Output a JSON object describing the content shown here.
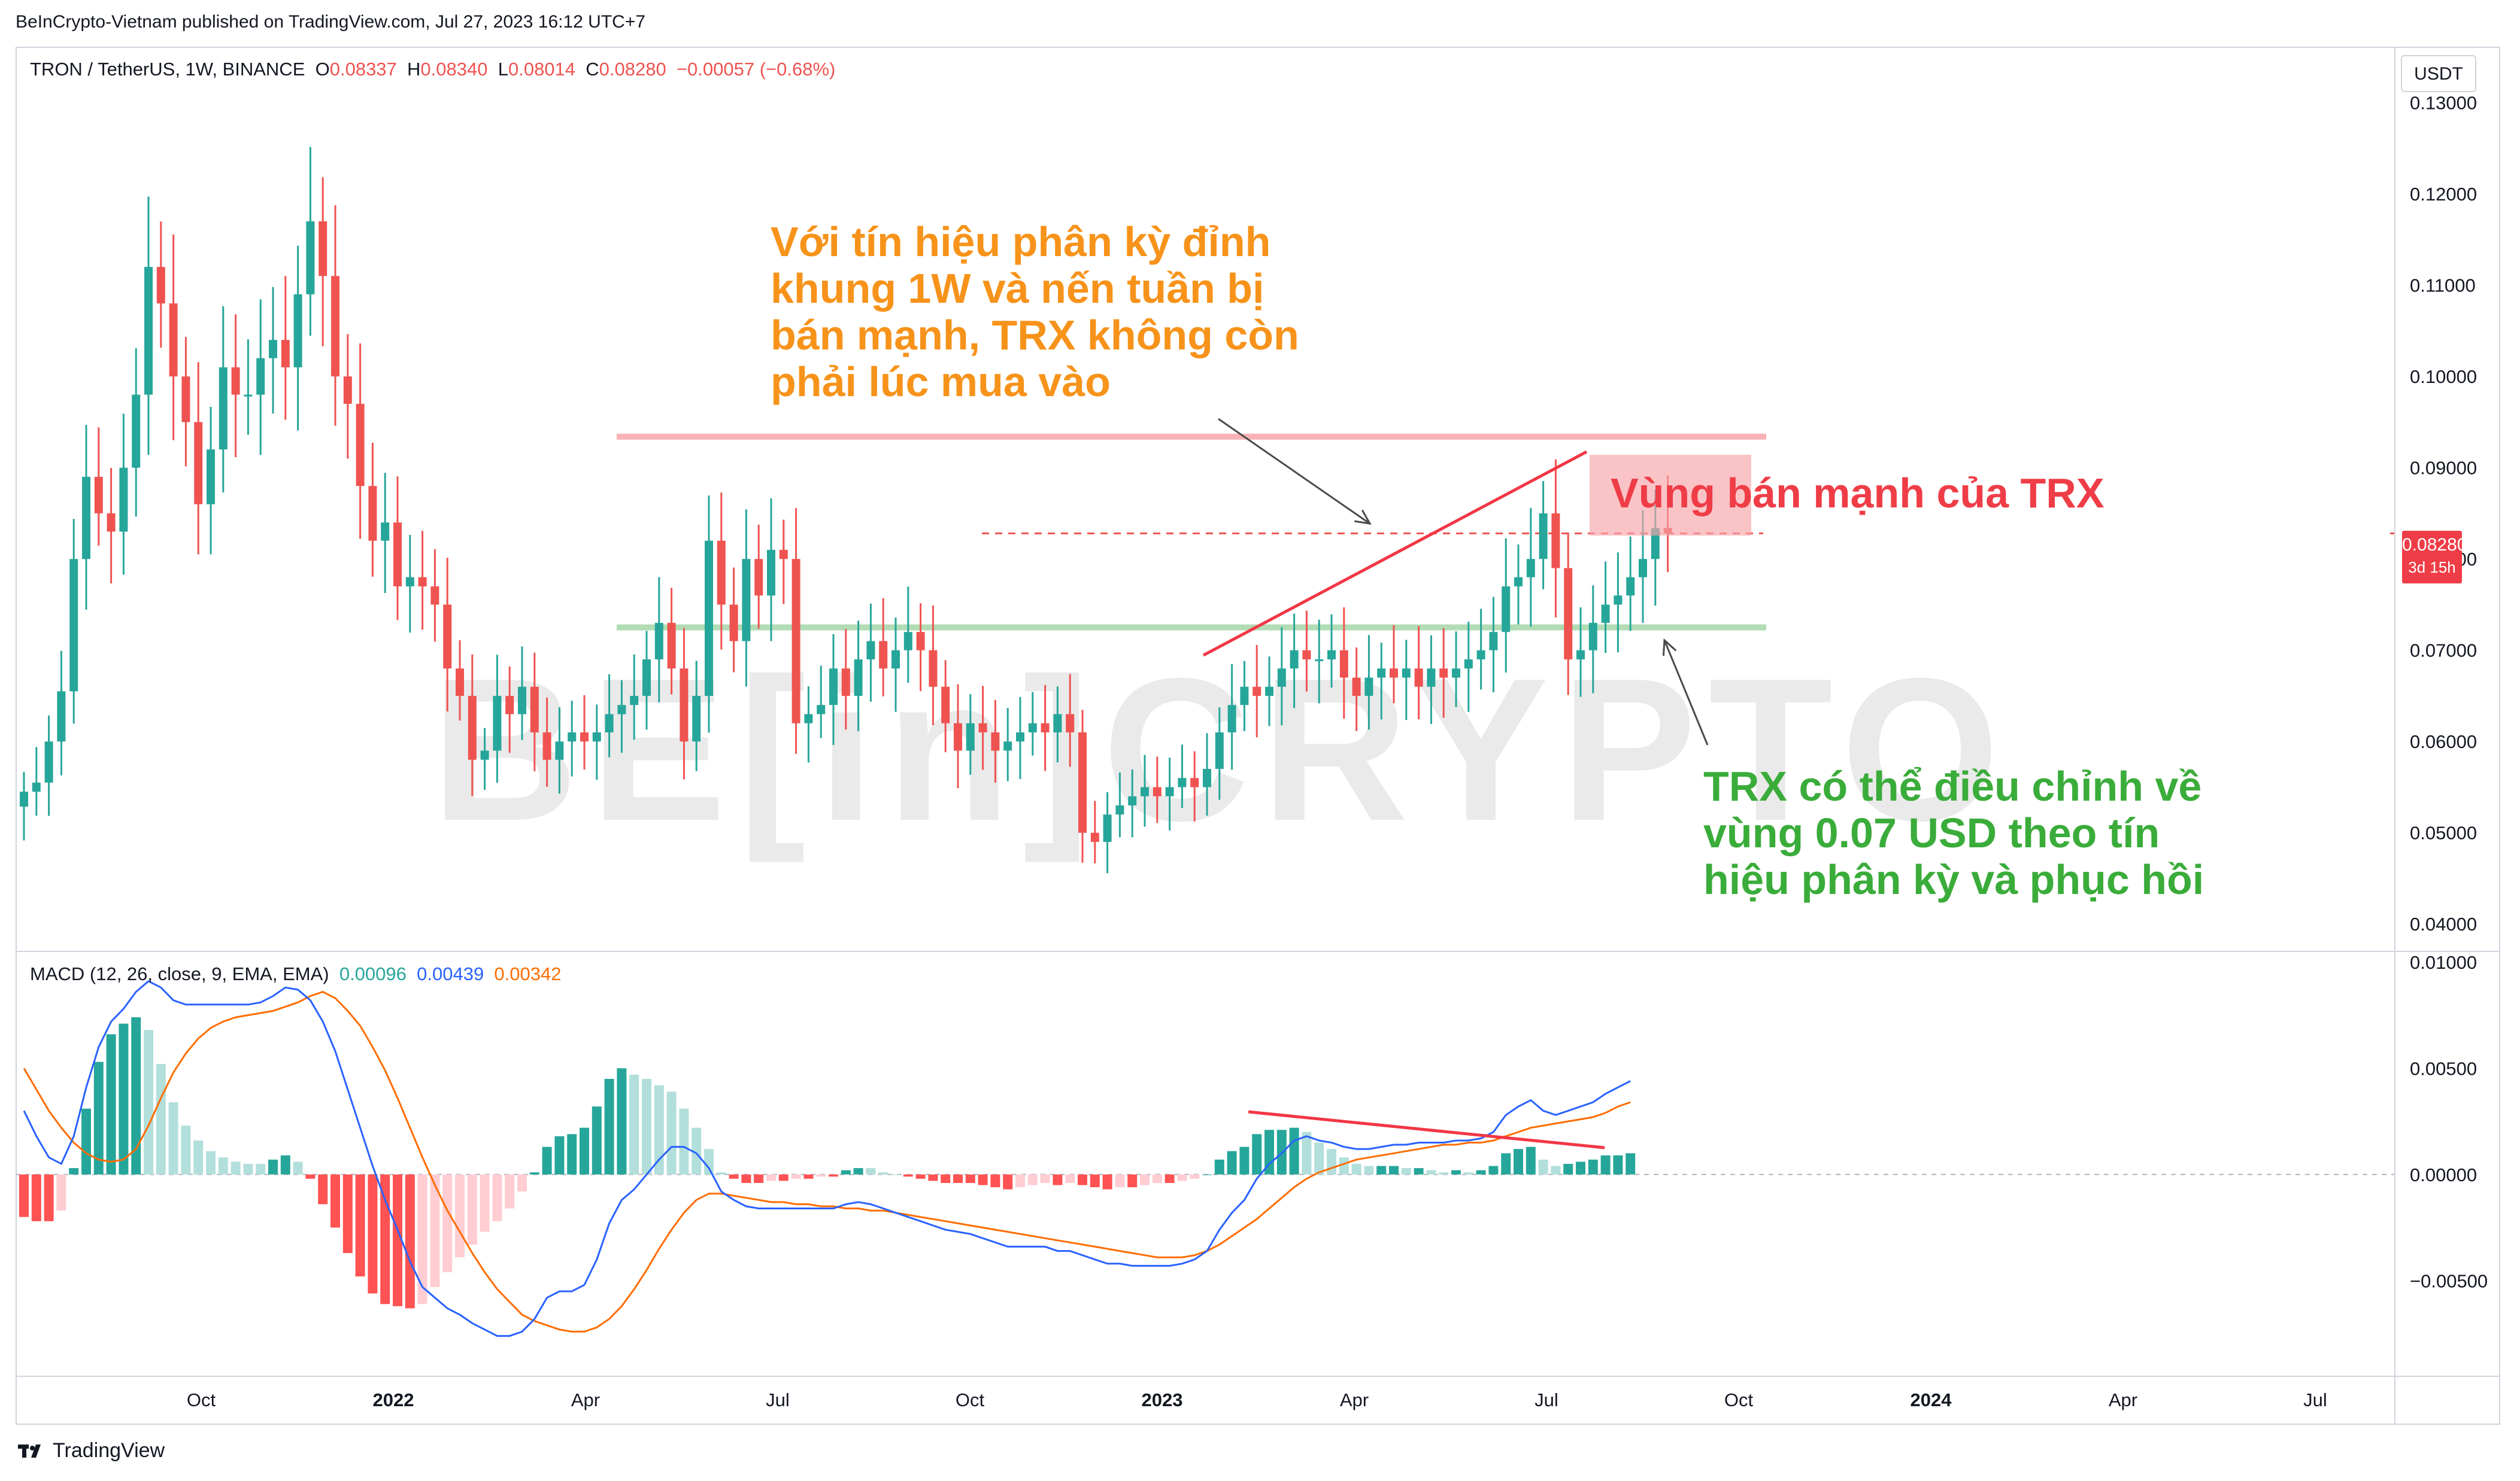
{
  "header": {
    "publisher": "BeInCrypto-Vietnam published on TradingView.com, Jul 27, 2023 16:12 UTC+7"
  },
  "legend": {
    "symbol": "TRON / TetherUS, 1W, BINANCE",
    "o_label": "O",
    "o": "0.08337",
    "h_label": "H",
    "h": "0.08340",
    "l_label": "L",
    "l": "0.08014",
    "c_label": "C",
    "c": "0.08280",
    "change": "−0.00057 (−0.68%)"
  },
  "macd_legend": {
    "label": "MACD (12, 26, close, 9, EMA, EMA)",
    "hist": "0.00096",
    "macd": "0.00439",
    "signal": "0.00342"
  },
  "currency": "USDT",
  "price_badge": {
    "price": "0.08280",
    "countdown": "3d 15h"
  },
  "annotations": {
    "orange": [
      "Với tín hiệu phân kỳ đỉnh",
      "khung 1W và nến tuần bị",
      "bán mạnh, TRX không còn",
      "phải lúc mua vào"
    ],
    "red": "Vùng bán mạnh của TRX",
    "green": [
      "TRX có thể điều chỉnh về",
      "vùng 0.07 USD theo tín",
      "hiệu phân kỳ và phục hồi"
    ]
  },
  "watermark": "BE[in]CRYPTO",
  "brand": "TradingView",
  "colors": {
    "up": "#26a69a",
    "down": "#ef5350",
    "macd_line": "#2962ff",
    "signal_line": "#ff6d00",
    "hist_up_strong": "#26a69a",
    "hist_up_weak": "#b2dfdb",
    "hist_down_strong": "#ff5252",
    "hist_down_weak": "#ffcdd2",
    "resistance": "#f8a5a9",
    "support": "#a5d6a7",
    "trend": "#f23645"
  },
  "chart_data": [
    {
      "type": "candlestick",
      "title": "TRON / TetherUS, 1W, BINANCE",
      "ylim": [
        0.037,
        0.136
      ],
      "yticks": [
        "0.13000",
        "0.12000",
        "0.11000",
        "0.10000",
        "0.09000",
        "0.08000",
        "0.07000",
        "0.06000",
        "0.05000",
        "0.04000"
      ],
      "xticks": [
        "Oct",
        "2022",
        "Apr",
        "Jul",
        "Oct",
        "2023",
        "Apr",
        "Jul",
        "Oct",
        "2024",
        "Apr",
        "Jul"
      ],
      "last_price": 0.0828,
      "levels": {
        "resistance": 0.0934,
        "support": 0.0725,
        "current": 0.0828
      },
      "closes": [
        0.0545,
        0.0555,
        0.06,
        0.0655,
        0.08,
        0.089,
        0.085,
        0.083,
        0.09,
        0.098,
        0.112,
        0.108,
        0.1,
        0.095,
        0.086,
        0.092,
        0.101,
        0.098,
        0.098,
        0.102,
        0.104,
        0.101,
        0.109,
        0.117,
        0.111,
        0.1,
        0.097,
        0.088,
        0.082,
        0.084,
        0.077,
        0.078,
        0.077,
        0.075,
        0.068,
        0.065,
        0.058,
        0.059,
        0.065,
        0.063,
        0.066,
        0.061,
        0.058,
        0.06,
        0.061,
        0.06,
        0.061,
        0.063,
        0.064,
        0.065,
        0.069,
        0.073,
        0.068,
        0.06,
        0.065,
        0.082,
        0.075,
        0.071,
        0.08,
        0.076,
        0.081,
        0.08,
        0.062,
        0.063,
        0.064,
        0.068,
        0.065,
        0.069,
        0.071,
        0.068,
        0.07,
        0.072,
        0.07,
        0.066,
        0.062,
        0.059,
        0.062,
        0.061,
        0.059,
        0.06,
        0.061,
        0.062,
        0.061,
        0.063,
        0.061,
        0.05,
        0.049,
        0.052,
        0.053,
        0.054,
        0.055,
        0.054,
        0.055,
        0.056,
        0.055,
        0.057,
        0.061,
        0.064,
        0.066,
        0.065,
        0.066,
        0.068,
        0.07,
        0.069,
        0.069,
        0.07,
        0.067,
        0.065,
        0.067,
        0.068,
        0.067,
        0.068,
        0.066,
        0.068,
        0.067,
        0.068,
        0.069,
        0.07,
        0.072,
        0.077,
        0.078,
        0.08,
        0.085,
        0.079,
        0.069,
        0.07,
        0.073,
        0.075,
        0.076,
        0.078,
        0.08,
        0.0834,
        0.0828
      ]
    },
    {
      "type": "macd",
      "title": "MACD (12, 26, close, 9, EMA, EMA)",
      "ylim": [
        -0.0095,
        0.0105
      ],
      "yticks": [
        "0.01000",
        "0.00500",
        "0.00000",
        "−0.00500"
      ],
      "macd": [
        0.003,
        0.0018,
        0.0008,
        0.0005,
        0.0018,
        0.0041,
        0.006,
        0.0072,
        0.0078,
        0.0086,
        0.0091,
        0.0088,
        0.0082,
        0.008,
        0.008,
        0.008,
        0.008,
        0.008,
        0.008,
        0.0081,
        0.0084,
        0.0088,
        0.0087,
        0.0082,
        0.0072,
        0.0058,
        0.004,
        0.0022,
        0.0004,
        -0.0012,
        -0.0026,
        -0.0041,
        -0.0053,
        -0.0058,
        -0.0063,
        -0.0066,
        -0.007,
        -0.0073,
        -0.0076,
        -0.0076,
        -0.0074,
        -0.0068,
        -0.0058,
        -0.0055,
        -0.0055,
        -0.0052,
        -0.004,
        -0.0023,
        -0.0012,
        -0.0007,
        0.0,
        0.0007,
        0.0013,
        0.0013,
        0.001,
        0.0003,
        -0.0008,
        -0.0012,
        -0.0015,
        -0.0016,
        -0.0016,
        -0.0016,
        -0.0016,
        -0.0016,
        -0.0016,
        -0.0016,
        -0.0014,
        -0.0013,
        -0.0014,
        -0.0016,
        -0.0018,
        -0.002,
        -0.0022,
        -0.0024,
        -0.0026,
        -0.0027,
        -0.0028,
        -0.003,
        -0.0032,
        -0.0034,
        -0.0034,
        -0.0034,
        -0.0034,
        -0.0036,
        -0.0036,
        -0.0038,
        -0.004,
        -0.0042,
        -0.0042,
        -0.0043,
        -0.0043,
        -0.0043,
        -0.0043,
        -0.0042,
        -0.004,
        -0.0036,
        -0.0026,
        -0.0018,
        -0.0012,
        -0.0002,
        0.0005,
        0.001,
        0.0016,
        0.0018,
        0.0016,
        0.0015,
        0.0013,
        0.0012,
        0.0012,
        0.0013,
        0.0014,
        0.0014,
        0.0015,
        0.0015,
        0.0015,
        0.0016,
        0.0016,
        0.0017,
        0.002,
        0.0028,
        0.0032,
        0.0035,
        0.003,
        0.0028,
        0.003,
        0.0032,
        0.0034,
        0.0038,
        0.0041,
        0.0044
      ],
      "signal": [
        0.005,
        0.004,
        0.003,
        0.0022,
        0.0015,
        0.001,
        0.0007,
        0.0006,
        0.0007,
        0.0012,
        0.0023,
        0.0036,
        0.0048,
        0.0057,
        0.0064,
        0.0069,
        0.0072,
        0.0074,
        0.0075,
        0.0076,
        0.0077,
        0.0079,
        0.0081,
        0.0084,
        0.0086,
        0.0083,
        0.0077,
        0.007,
        0.006,
        0.0049,
        0.0036,
        0.0022,
        0.0008,
        -0.0005,
        -0.0017,
        -0.0027,
        -0.0037,
        -0.0046,
        -0.0054,
        -0.006,
        -0.0066,
        -0.0069,
        -0.0071,
        -0.0073,
        -0.0074,
        -0.0074,
        -0.0072,
        -0.0068,
        -0.0062,
        -0.0054,
        -0.0045,
        -0.0035,
        -0.0026,
        -0.0018,
        -0.0012,
        -0.0009,
        -0.0009,
        -0.001,
        -0.0011,
        -0.0012,
        -0.0013,
        -0.0013,
        -0.0014,
        -0.0014,
        -0.0015,
        -0.0015,
        -0.0016,
        -0.0016,
        -0.0017,
        -0.0017,
        -0.0018,
        -0.0019,
        -0.002,
        -0.0021,
        -0.0022,
        -0.0023,
        -0.0024,
        -0.0025,
        -0.0026,
        -0.0027,
        -0.0028,
        -0.0029,
        -0.003,
        -0.0031,
        -0.0032,
        -0.0033,
        -0.0034,
        -0.0035,
        -0.0036,
        -0.0037,
        -0.0038,
        -0.0039,
        -0.0039,
        -0.0039,
        -0.0038,
        -0.0036,
        -0.0033,
        -0.0029,
        -0.0025,
        -0.0021,
        -0.0016,
        -0.0011,
        -0.0006,
        -0.0002,
        0.0001,
        0.0003,
        0.0005,
        0.0007,
        0.0008,
        0.0009,
        0.001,
        0.0011,
        0.0012,
        0.0013,
        0.0014,
        0.0014,
        0.0015,
        0.0015,
        0.0016,
        0.0018,
        0.002,
        0.0022,
        0.0023,
        0.0024,
        0.0025,
        0.0026,
        0.0027,
        0.0029,
        0.0032,
        0.0034
      ]
    }
  ]
}
